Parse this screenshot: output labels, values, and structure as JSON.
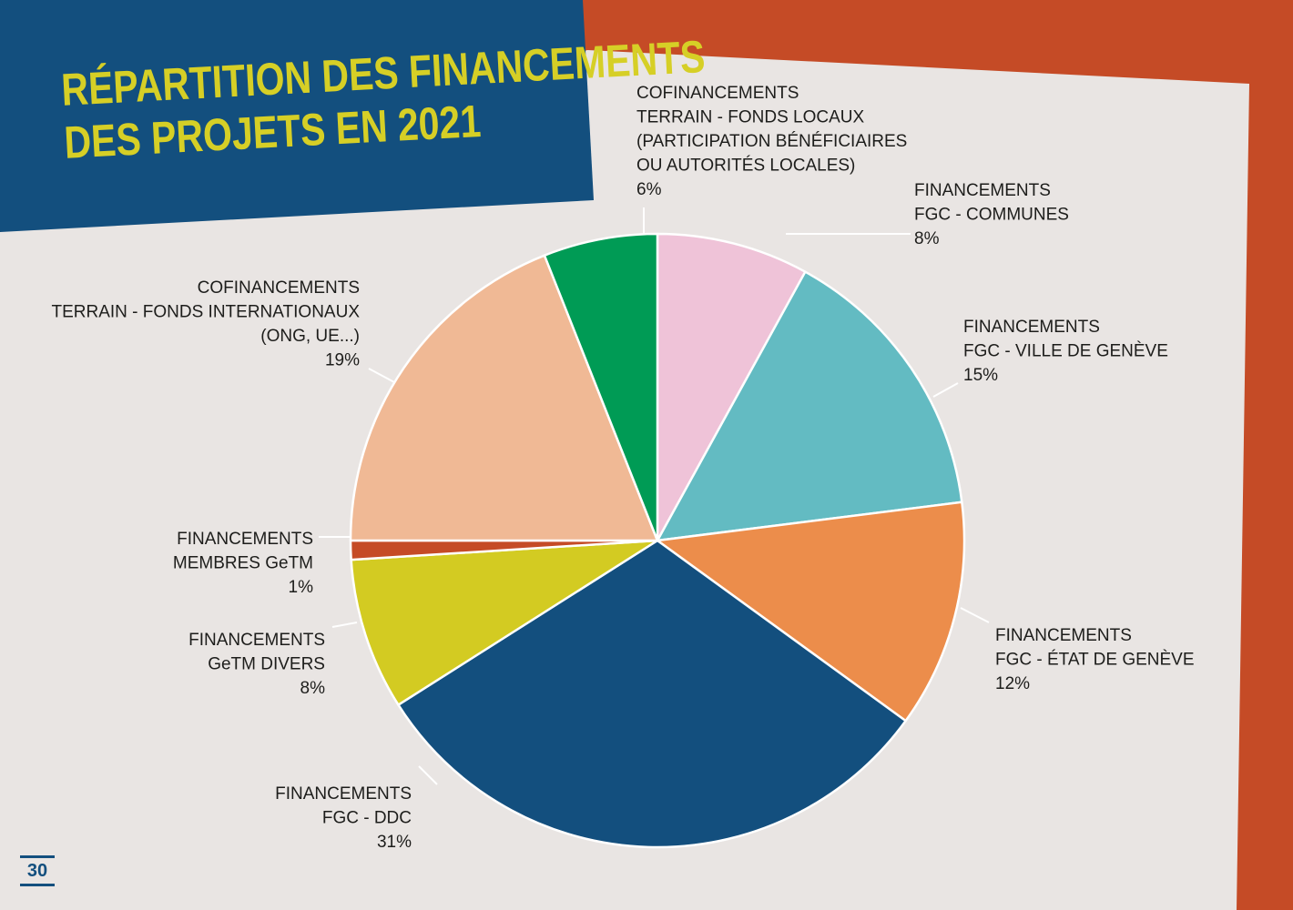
{
  "page": {
    "title_line1": "RÉPARTITION DES FINANCEMENTS",
    "title_line2": "DES PROJETS EN 2021",
    "page_number": "30"
  },
  "colors": {
    "banner": "#134f7e",
    "frame": "#c54b26",
    "paper": "#e9e5e3",
    "title": "#d6cf26"
  },
  "chart_data": {
    "type": "pie",
    "title": "RÉPARTITION DES FINANCEMENTS DES PROJETS EN 2021",
    "start_angle_deg": 0,
    "direction": "clockwise",
    "slices": [
      {
        "label": [
          "FINANCEMENTS",
          "FGC - COMMUNES"
        ],
        "value": 8,
        "pct_label": "8%",
        "color": "#efc3d8"
      },
      {
        "label": [
          "FINANCEMENTS",
          "FGC - VILLE DE GENÈVE"
        ],
        "value": 15,
        "pct_label": "15%",
        "color": "#63bbc2"
      },
      {
        "label": [
          "FINANCEMENTS",
          "FGC - ÉTAT DE GENÈVE"
        ],
        "value": 12,
        "pct_label": "12%",
        "color": "#ec8d4b"
      },
      {
        "label": [
          "FINANCEMENTS",
          "FGC - DDC"
        ],
        "value": 31,
        "pct_label": "31%",
        "color": "#134f7e"
      },
      {
        "label": [
          "FINANCEMENTS",
          "GeTM DIVERS"
        ],
        "value": 8,
        "pct_label": "8%",
        "color": "#d3cb22"
      },
      {
        "label": [
          "FINANCEMENTS",
          "MEMBRES GeTM"
        ],
        "value": 1,
        "pct_label": "1%",
        "color": "#c54b26"
      },
      {
        "label": [
          "COFINANCEMENTS",
          "TERRAIN - FONDS INTERNATIONAUX",
          "(ONG, UE...)"
        ],
        "value": 19,
        "pct_label": "19%",
        "color": "#f0b995"
      },
      {
        "label": [
          "COFINANCEMENTS",
          "TERRAIN - FONDS LOCAUX",
          "(PARTICIPATION BÉNÉFICIAIRES",
          "OU AUTORITÉS LOCALES)"
        ],
        "value": 6,
        "pct_label": "6%",
        "color": "#009b55"
      }
    ]
  }
}
